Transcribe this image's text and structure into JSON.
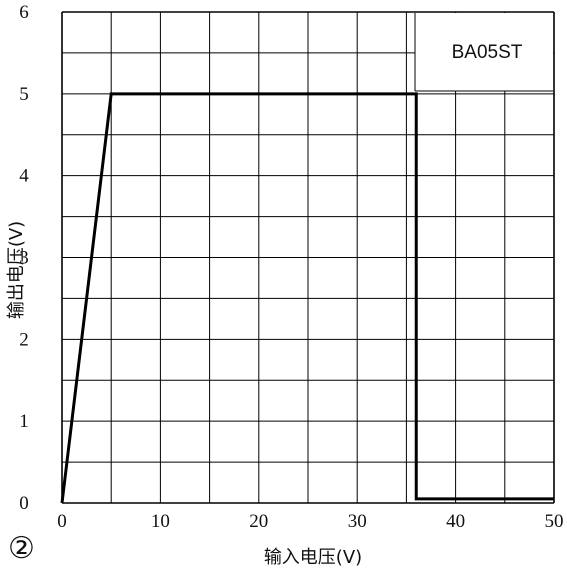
{
  "chart_data": {
    "type": "line",
    "xlabel": "输入电压(V)",
    "ylabel": "输出电压(V)",
    "xlim": [
      0,
      50
    ],
    "ylim": [
      0,
      6
    ],
    "x_ticks": [
      0,
      10,
      20,
      30,
      40,
      50
    ],
    "y_ticks": [
      0,
      1,
      2,
      3,
      4,
      5,
      6
    ],
    "x_minor_step": 5,
    "y_minor_step": 0.5,
    "grid": true,
    "annotation": "BA05ST",
    "figure_marker": "②",
    "series": [
      {
        "x": [
          0,
          5,
          36,
          36,
          50
        ],
        "y": [
          0,
          5,
          5,
          0.05,
          0.05
        ]
      }
    ],
    "colors": {
      "line": "#000000",
      "grid": "#000000"
    }
  }
}
